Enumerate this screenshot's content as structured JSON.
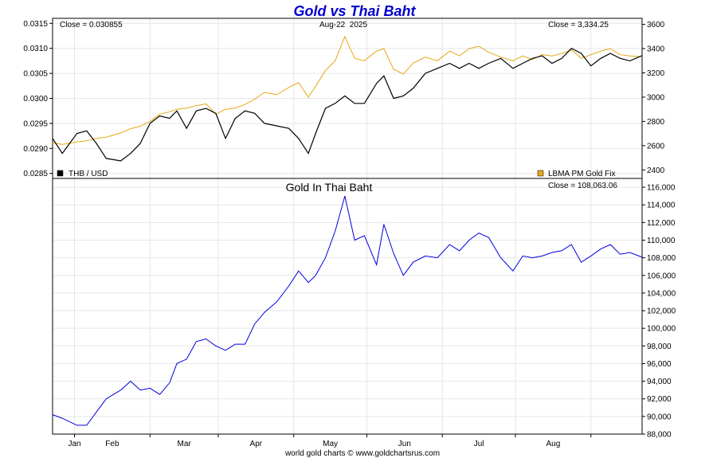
{
  "title": "Gold vs Thai Baht",
  "footer": "world gold charts © www.goldchartsrus.com",
  "colors": {
    "title": "#0000cc",
    "thb_usd": "#000000",
    "gold_usd": "#e6a817",
    "gold_thb": "#0000e0",
    "frame": "#000000",
    "grid": "#e6e6e6",
    "background": "#ffffff"
  },
  "chart_data": [
    {
      "type": "line",
      "panel": "top",
      "date_label": "Aug-22  2025",
      "close_left": "Close = 0.030855",
      "close_right": "Close = 3,334.25",
      "x_labels": [
        "Jan",
        "Feb",
        "Mar",
        "Apr",
        "May",
        "Jun",
        "Jul",
        "Aug"
      ],
      "x_range": [
        "2024-12-23",
        "2025-08-22"
      ],
      "y_left": {
        "range": [
          0.0284,
          0.0316
        ],
        "ticks": [
          "0.0285",
          "0.0290",
          "0.0295",
          "0.0300",
          "0.0305",
          "0.0310",
          "0.0315"
        ]
      },
      "y_right": {
        "range": [
          2330,
          3650
        ],
        "ticks": [
          "2400",
          "2600",
          "2800",
          "3000",
          "3200",
          "3400",
          "3600"
        ]
      },
      "legend": [
        {
          "name": "THB / USD",
          "color": "#000000",
          "position": "bottom-left"
        },
        {
          "name": "LBMA PM Gold Fix",
          "color": "#e6a817",
          "position": "bottom-right"
        }
      ],
      "series": [
        {
          "name": "THB / USD",
          "axis": "left",
          "points": [
            [
              "2024-12-23",
              0.0292
            ],
            [
              "2024-12-27",
              0.0289
            ],
            [
              "2025-01-02",
              0.0293
            ],
            [
              "2025-01-06",
              0.02935
            ],
            [
              "2025-01-10",
              0.0291
            ],
            [
              "2025-01-14",
              0.0288
            ],
            [
              "2025-01-20",
              0.02875
            ],
            [
              "2025-01-24",
              0.0289
            ],
            [
              "2025-01-28",
              0.0291
            ],
            [
              "2025-02-01",
              0.0295
            ],
            [
              "2025-02-05",
              0.02965
            ],
            [
              "2025-02-09",
              0.0296
            ],
            [
              "2025-02-12",
              0.02975
            ],
            [
              "2025-02-16",
              0.0294
            ],
            [
              "2025-02-20",
              0.02975
            ],
            [
              "2025-02-24",
              0.0298
            ],
            [
              "2025-02-28",
              0.0297
            ],
            [
              "2025-03-04",
              0.0292
            ],
            [
              "2025-03-08",
              0.0296
            ],
            [
              "2025-03-12",
              0.02975
            ],
            [
              "2025-03-16",
              0.0297
            ],
            [
              "2025-03-20",
              0.0295
            ],
            [
              "2025-03-25",
              0.02945
            ],
            [
              "2025-03-30",
              0.0294
            ],
            [
              "2025-04-03",
              0.0292
            ],
            [
              "2025-04-07",
              0.0289
            ],
            [
              "2025-04-10",
              0.0293
            ],
            [
              "2025-04-14",
              0.0298
            ],
            [
              "2025-04-18",
              0.0299
            ],
            [
              "2025-04-22",
              0.03005
            ],
            [
              "2025-04-26",
              0.0299
            ],
            [
              "2025-04-30",
              0.0299
            ],
            [
              "2025-05-05",
              0.0303
            ],
            [
              "2025-05-08",
              0.03045
            ],
            [
              "2025-05-12",
              0.03
            ],
            [
              "2025-05-16",
              0.03005
            ],
            [
              "2025-05-20",
              0.0302
            ],
            [
              "2025-05-25",
              0.0305
            ],
            [
              "2025-05-30",
              0.0306
            ],
            [
              "2025-06-04",
              0.0307
            ],
            [
              "2025-06-08",
              0.0306
            ],
            [
              "2025-06-12",
              0.0307
            ],
            [
              "2025-06-16",
              0.0306
            ],
            [
              "2025-06-20",
              0.0307
            ],
            [
              "2025-06-25",
              0.0308
            ],
            [
              "2025-06-30",
              0.0306
            ],
            [
              "2025-07-04",
              0.0307
            ],
            [
              "2025-07-08",
              0.0308
            ],
            [
              "2025-07-12",
              0.03085
            ],
            [
              "2025-07-16",
              0.0307
            ],
            [
              "2025-07-20",
              0.0308
            ],
            [
              "2025-07-24",
              0.031
            ],
            [
              "2025-07-28",
              0.0309
            ],
            [
              "2025-08-01",
              0.03065
            ],
            [
              "2025-08-05",
              0.0308
            ],
            [
              "2025-08-09",
              0.0309
            ],
            [
              "2025-08-13",
              0.0308
            ],
            [
              "2025-08-17",
              0.03075
            ],
            [
              "2025-08-22",
              0.030855
            ]
          ]
        },
        {
          "name": "LBMA PM Gold Fix",
          "axis": "right",
          "points": [
            [
              "2024-12-23",
              2625
            ],
            [
              "2024-12-27",
              2610
            ],
            [
              "2025-01-02",
              2630
            ],
            [
              "2025-01-06",
              2640
            ],
            [
              "2025-01-10",
              2660
            ],
            [
              "2025-01-14",
              2670
            ],
            [
              "2025-01-20",
              2705
            ],
            [
              "2025-01-24",
              2740
            ],
            [
              "2025-01-28",
              2760
            ],
            [
              "2025-02-01",
              2800
            ],
            [
              "2025-02-05",
              2860
            ],
            [
              "2025-02-09",
              2880
            ],
            [
              "2025-02-12",
              2900
            ],
            [
              "2025-02-16",
              2910
            ],
            [
              "2025-02-20",
              2930
            ],
            [
              "2025-02-24",
              2945
            ],
            [
              "2025-02-28",
              2860
            ],
            [
              "2025-03-04",
              2900
            ],
            [
              "2025-03-08",
              2910
            ],
            [
              "2025-03-12",
              2940
            ],
            [
              "2025-03-16",
              2985
            ],
            [
              "2025-03-20",
              3040
            ],
            [
              "2025-03-25",
              3020
            ],
            [
              "2025-03-30",
              3080
            ],
            [
              "2025-04-03",
              3120
            ],
            [
              "2025-04-07",
              3000
            ],
            [
              "2025-04-10",
              3090
            ],
            [
              "2025-04-14",
              3220
            ],
            [
              "2025-04-18",
              3300
            ],
            [
              "2025-04-22",
              3500
            ],
            [
              "2025-04-26",
              3320
            ],
            [
              "2025-04-30",
              3300
            ],
            [
              "2025-05-05",
              3380
            ],
            [
              "2025-05-08",
              3400
            ],
            [
              "2025-05-12",
              3230
            ],
            [
              "2025-05-16",
              3190
            ],
            [
              "2025-05-20",
              3280
            ],
            [
              "2025-05-25",
              3330
            ],
            [
              "2025-05-30",
              3300
            ],
            [
              "2025-06-04",
              3380
            ],
            [
              "2025-06-08",
              3340
            ],
            [
              "2025-06-12",
              3400
            ],
            [
              "2025-06-16",
              3420
            ],
            [
              "2025-06-20",
              3370
            ],
            [
              "2025-06-25",
              3330
            ],
            [
              "2025-06-30",
              3300
            ],
            [
              "2025-07-04",
              3340
            ],
            [
              "2025-07-08",
              3310
            ],
            [
              "2025-07-12",
              3350
            ],
            [
              "2025-07-16",
              3340
            ],
            [
              "2025-07-20",
              3360
            ],
            [
              "2025-07-24",
              3390
            ],
            [
              "2025-07-28",
              3320
            ],
            [
              "2025-08-01",
              3350
            ],
            [
              "2025-08-05",
              3380
            ],
            [
              "2025-08-09",
              3400
            ],
            [
              "2025-08-13",
              3350
            ],
            [
              "2025-08-17",
              3340
            ],
            [
              "2025-08-22",
              3334.25
            ]
          ]
        }
      ]
    },
    {
      "type": "line",
      "panel": "bottom",
      "title": "Gold In Thai Baht",
      "close_right": "Close = 108,063.06",
      "x_labels": [
        "Jan",
        "Feb",
        "Mar",
        "Apr",
        "May",
        "Jun",
        "Jul",
        "Aug"
      ],
      "x_range": [
        "2024-12-23",
        "2025-08-22"
      ],
      "y_right": {
        "range": [
          88000,
          117000
        ],
        "ticks": [
          "88,000",
          "90,000",
          "92,000",
          "94,000",
          "96,000",
          "98,000",
          "100,000",
          "102,000",
          "104,000",
          "106,000",
          "108,000",
          "110,000",
          "112,000",
          "114,000",
          "116,000"
        ]
      },
      "series": [
        {
          "name": "Gold In Thai Baht",
          "axis": "right",
          "points": [
            [
              "2024-12-23",
              90200
            ],
            [
              "2024-12-27",
              89800
            ],
            [
              "2025-01-02",
              89000
            ],
            [
              "2025-01-06",
              89000
            ],
            [
              "2025-01-10",
              90500
            ],
            [
              "2025-01-14",
              92000
            ],
            [
              "2025-01-20",
              93000
            ],
            [
              "2025-01-24",
              94000
            ],
            [
              "2025-01-28",
              93000
            ],
            [
              "2025-02-01",
              93200
            ],
            [
              "2025-02-05",
              92500
            ],
            [
              "2025-02-09",
              93800
            ],
            [
              "2025-02-12",
              96000
            ],
            [
              "2025-02-16",
              96500
            ],
            [
              "2025-02-20",
              98500
            ],
            [
              "2025-02-24",
              98800
            ],
            [
              "2025-02-28",
              98000
            ],
            [
              "2025-03-04",
              97500
            ],
            [
              "2025-03-08",
              98200
            ],
            [
              "2025-03-12",
              98200
            ],
            [
              "2025-03-16",
              100500
            ],
            [
              "2025-03-20",
              101800
            ],
            [
              "2025-03-25",
              103000
            ],
            [
              "2025-03-30",
              104800
            ],
            [
              "2025-04-03",
              106500
            ],
            [
              "2025-04-07",
              105200
            ],
            [
              "2025-04-10",
              106000
            ],
            [
              "2025-04-14",
              108000
            ],
            [
              "2025-04-18",
              111000
            ],
            [
              "2025-04-22",
              115000
            ],
            [
              "2025-04-26",
              110000
            ],
            [
              "2025-04-30",
              110500
            ],
            [
              "2025-05-05",
              107200
            ],
            [
              "2025-05-08",
              111800
            ],
            [
              "2025-05-12",
              108500
            ],
            [
              "2025-05-16",
              106000
            ],
            [
              "2025-05-20",
              107500
            ],
            [
              "2025-05-25",
              108200
            ],
            [
              "2025-05-30",
              108000
            ],
            [
              "2025-06-04",
              109500
            ],
            [
              "2025-06-08",
              108800
            ],
            [
              "2025-06-12",
              110000
            ],
            [
              "2025-06-16",
              110800
            ],
            [
              "2025-06-20",
              110300
            ],
            [
              "2025-06-25",
              108000
            ],
            [
              "2025-06-30",
              106500
            ],
            [
              "2025-07-04",
              108200
            ],
            [
              "2025-07-08",
              108000
            ],
            [
              "2025-07-12",
              108200
            ],
            [
              "2025-07-16",
              108600
            ],
            [
              "2025-07-20",
              108800
            ],
            [
              "2025-07-24",
              109500
            ],
            [
              "2025-07-28",
              107500
            ],
            [
              "2025-08-01",
              108200
            ],
            [
              "2025-08-05",
              109000
            ],
            [
              "2025-08-09",
              109500
            ],
            [
              "2025-08-13",
              108400
            ],
            [
              "2025-08-17",
              108600
            ],
            [
              "2025-08-22",
              108063
            ]
          ]
        }
      ]
    }
  ]
}
